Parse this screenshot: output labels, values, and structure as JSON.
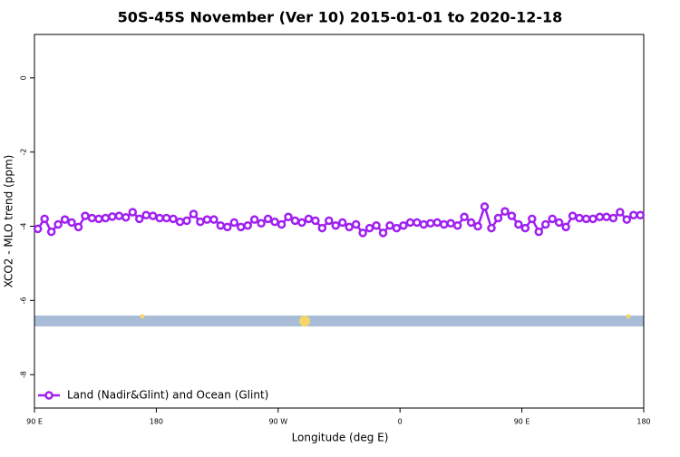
{
  "chart_data": {
    "type": "line",
    "title": "50S-45S November (Ver 10)   2015-01-01 to 2020-12-18",
    "x_label": "Longitude (deg E)",
    "y_label": "XCO2 - MLO trend (ppm)",
    "x": [
      92.5,
      97.5,
      102.5,
      107.5,
      112.5,
      117.5,
      122.5,
      127.5,
      132.5,
      137.5,
      142.5,
      147.5,
      152.5,
      157.5,
      162.5,
      167.5,
      172.5,
      177.5,
      182.5,
      187.5,
      192.5,
      197.5,
      202.5,
      207.5,
      212.5,
      217.5,
      222.5,
      227.5,
      232.5,
      237.5,
      242.5,
      247.5,
      252.5,
      257.5,
      262.5,
      267.5,
      272.5,
      277.5,
      282.5,
      287.5,
      292.5,
      297.5,
      302.5,
      307.5,
      312.5,
      317.5,
      322.5,
      327.5,
      332.5,
      337.5,
      342.5,
      347.5,
      352.5,
      357.5,
      362.5,
      367.5,
      372.5,
      377.5,
      382.5,
      387.5,
      392.5,
      397.5,
      402.5,
      407.5,
      412.5,
      417.5,
      422.5,
      427.5,
      432.5,
      437.5,
      442.5,
      447.5,
      452.5,
      457.5,
      462.5,
      467.5,
      472.5,
      477.5,
      482.5,
      487.5,
      492.5,
      497.5,
      502.5,
      507.5,
      512.5,
      517.5,
      522.5,
      527.5,
      532.5,
      537.5
    ],
    "series": [
      {
        "name": "Land (Nadir&Glint) and Ocean (Glint)",
        "color": "#a020f0",
        "values": [
          -4.07,
          -3.8,
          -4.15,
          -3.95,
          -3.82,
          -3.9,
          -4.02,
          -3.72,
          -3.78,
          -3.8,
          -3.78,
          -3.74,
          -3.72,
          -3.76,
          -3.62,
          -3.8,
          -3.7,
          -3.72,
          -3.78,
          -3.78,
          -3.8,
          -3.88,
          -3.85,
          -3.67,
          -3.88,
          -3.82,
          -3.82,
          -3.98,
          -4.02,
          -3.9,
          -4.02,
          -3.98,
          -3.82,
          -3.92,
          -3.8,
          -3.88,
          -3.95,
          -3.75,
          -3.85,
          -3.9,
          -3.8,
          -3.85,
          -4.05,
          -3.85,
          -3.98,
          -3.9,
          -4.02,
          -3.95,
          -4.18,
          -4.05,
          -3.98,
          -4.18,
          -3.98,
          -4.05,
          -3.98,
          -3.9,
          -3.9,
          -3.95,
          -3.92,
          -3.9,
          -3.95,
          -3.92,
          -3.98,
          -3.75,
          -3.9,
          -4.0,
          -3.47,
          -4.05,
          -3.78,
          -3.6,
          -3.72,
          -3.95,
          -4.05,
          -3.8,
          -4.15,
          -3.95,
          -3.8,
          -3.9,
          -4.02,
          -3.72,
          -3.78,
          -3.8,
          -3.8,
          -3.75,
          -3.75,
          -3.78,
          -3.62,
          -3.82,
          -3.7,
          -3.7
        ]
      }
    ],
    "xlim": [
      90,
      540
    ],
    "xticks": [
      {
        "value": 90,
        "label": "90 E"
      },
      180,
      {
        "value": 270,
        "label": "90 W"
      },
      {
        "value": 360,
        "label": "0"
      },
      {
        "value": 450,
        "label": "90 E"
      },
      {
        "value": 540,
        "label": "180"
      }
    ],
    "ylim": [
      -8.9,
      1.17
    ],
    "yticks": [
      0,
      -2,
      -4,
      -6,
      -8
    ],
    "legend": "bottom-left"
  }
}
